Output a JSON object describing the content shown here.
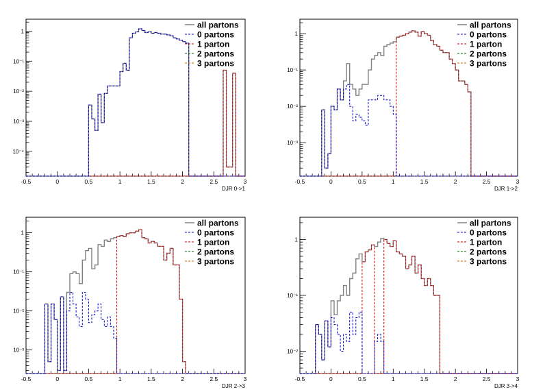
{
  "colors": {
    "all": "#808080",
    "p0": "#0000cc",
    "p1": "#cc0000",
    "p2": "#006600",
    "p3": "#cc6600",
    "axis": "#000000"
  },
  "legend_labels": [
    "all partons",
    "0 partons",
    "1 parton",
    "2 partons",
    "3 partons"
  ],
  "x_ticks": [
    "-0.5",
    "0",
    "0.5",
    "1",
    "1.5",
    "2",
    "2.5",
    "3"
  ],
  "chart_data": [
    {
      "type": "histogram",
      "xlabel": "DJR 0->1",
      "xlim": [
        -0.5,
        3
      ],
      "ylim": [
        1.5e-05,
        2.5
      ],
      "log_y": true,
      "y_ticks": [
        {
          "v": 1,
          "l": "1"
        },
        {
          "v": 0.1,
          "l": "10⁻¹"
        },
        {
          "v": 0.01,
          "l": "10⁻²"
        },
        {
          "v": 0.001,
          "l": "10⁻³"
        },
        {
          "v": 0.0001,
          "l": "10⁻⁴"
        }
      ],
      "legend_position": "top-right",
      "bin_width": 0.05,
      "bins": [
        {
          "x": 0.5,
          "all": 0.0035,
          "p0": 0.0035
        },
        {
          "x": 0.55,
          "all": 0.0012,
          "p0": 0.0012
        },
        {
          "x": 0.6,
          "all": 0.0005,
          "p0": 0.0005
        },
        {
          "x": 0.65,
          "all": 0.008,
          "p0": 0.008
        },
        {
          "x": 0.7,
          "all": 0.0009,
          "p0": 0.0009
        },
        {
          "x": 0.75,
          "all": 0.0085,
          "p0": 0.0085
        },
        {
          "x": 0.8,
          "all": 0.015,
          "p0": 0.015
        },
        {
          "x": 0.85,
          "all": 0.015,
          "p0": 0.015
        },
        {
          "x": 0.9,
          "all": 0.015,
          "p0": 0.015
        },
        {
          "x": 0.95,
          "all": 0.015,
          "p0": 0.015
        },
        {
          "x": 1.0,
          "all": 0.045,
          "p0": 0.045
        },
        {
          "x": 1.05,
          "all": 0.085,
          "p0": 0.085
        },
        {
          "x": 1.1,
          "all": 0.05,
          "p0": 0.05
        },
        {
          "x": 1.15,
          "all": 0.6,
          "p0": 0.6
        },
        {
          "x": 1.2,
          "all": 0.85,
          "p0": 0.85
        },
        {
          "x": 1.25,
          "all": 0.95,
          "p0": 0.95
        },
        {
          "x": 1.3,
          "all": 1.2,
          "p0": 1.2
        },
        {
          "x": 1.35,
          "all": 1.05,
          "p0": 1.05
        },
        {
          "x": 1.4,
          "all": 0.9,
          "p0": 0.9
        },
        {
          "x": 1.45,
          "all": 0.95,
          "p0": 0.95
        },
        {
          "x": 1.5,
          "all": 0.85,
          "p0": 0.85
        },
        {
          "x": 1.55,
          "all": 0.9,
          "p0": 0.9
        },
        {
          "x": 1.6,
          "all": 0.85,
          "p0": 0.85
        },
        {
          "x": 1.65,
          "all": 0.8,
          "p0": 0.8
        },
        {
          "x": 1.7,
          "all": 0.8,
          "p0": 0.8
        },
        {
          "x": 1.75,
          "all": 0.75,
          "p0": 0.75
        },
        {
          "x": 1.8,
          "all": 0.7,
          "p0": 0.7
        },
        {
          "x": 1.85,
          "all": 0.6,
          "p0": 0.6
        },
        {
          "x": 1.9,
          "all": 0.55,
          "p0": 0.55
        },
        {
          "x": 1.95,
          "all": 0.5,
          "p0": 0.5
        },
        {
          "x": 2.0,
          "all": 0.45,
          "p0": 0.45
        },
        {
          "x": 2.05,
          "all": 0.4,
          "p0": 0.4
        },
        {
          "x": 2.65,
          "all": 0.05
        },
        {
          "x": 2.7,
          "all": 3e-05
        },
        {
          "x": 2.75,
          "all": 3e-05
        },
        {
          "x": 2.8,
          "all": 0.04
        }
      ]
    },
    {
      "type": "histogram",
      "xlabel": "DJR 1->2",
      "xlim": [
        -0.5,
        3
      ],
      "ylim": [
        0.00012,
        2.5
      ],
      "log_y": true,
      "y_ticks": [
        {
          "v": 1,
          "l": "1"
        },
        {
          "v": 0.1,
          "l": "10⁻¹"
        },
        {
          "v": 0.01,
          "l": "10⁻²"
        },
        {
          "v": 0.001,
          "l": "10⁻³"
        }
      ],
      "legend_position": "top-right",
      "bin_width": 0.05,
      "bins": [
        {
          "x": -0.15,
          "all": 0.008,
          "p0": 0.008
        },
        {
          "x": -0.1,
          "all": 0.0002,
          "p0": 0.0002
        },
        {
          "x": -0.05,
          "all": 0.0005,
          "p0": 0.0005
        },
        {
          "x": 0.0,
          "all": 0.01,
          "p0": 0.01
        },
        {
          "x": 0.05,
          "all": 0.008,
          "p0": 0.008
        },
        {
          "x": 0.1,
          "all": 0.03,
          "p0": 0.03
        },
        {
          "x": 0.15,
          "all": 0.015,
          "p0": 0.015
        },
        {
          "x": 0.2,
          "all": 0.05,
          "p0": 0.03
        },
        {
          "x": 0.25,
          "all": 0.15,
          "p0": 0.04
        },
        {
          "x": 0.3,
          "all": 0.04,
          "p0": 0.01
        },
        {
          "x": 0.35,
          "all": 0.03,
          "p0": 0.004
        },
        {
          "x": 0.4,
          "all": 0.02,
          "p0": 0.006
        },
        {
          "x": 0.45,
          "all": 0.03,
          "p0": 0.005
        },
        {
          "x": 0.5,
          "all": 0.04,
          "p0": 0.004
        },
        {
          "x": 0.55,
          "all": 0.04,
          "p0": 0.003
        },
        {
          "x": 0.6,
          "all": 0.1,
          "p0": 0.015
        },
        {
          "x": 0.65,
          "all": 0.2,
          "p0": 0.015
        },
        {
          "x": 0.7,
          "all": 0.25,
          "p0": 0.015
        },
        {
          "x": 0.75,
          "all": 0.3,
          "p0": 0.02
        },
        {
          "x": 0.8,
          "all": 0.25,
          "p0": 0.02
        },
        {
          "x": 0.85,
          "all": 0.45,
          "p0": 0.015
        },
        {
          "x": 0.9,
          "all": 0.5,
          "p0": 0.015
        },
        {
          "x": 0.95,
          "all": 0.55,
          "p0": 0.01
        },
        {
          "x": 1.0,
          "all": 0.6,
          "p0": 0.006
        },
        {
          "x": 1.05,
          "all": 0.8
        },
        {
          "x": 1.1,
          "all": 0.85
        },
        {
          "x": 1.15,
          "all": 0.9
        },
        {
          "x": 1.2,
          "all": 1.0
        },
        {
          "x": 1.25,
          "all": 1.1
        },
        {
          "x": 1.3,
          "all": 1.2
        },
        {
          "x": 1.35,
          "all": 1.1
        },
        {
          "x": 1.4,
          "all": 0.85
        },
        {
          "x": 1.45,
          "all": 1.15
        },
        {
          "x": 1.5,
          "all": 1.0
        },
        {
          "x": 1.55,
          "all": 0.9
        },
        {
          "x": 1.6,
          "all": 0.65
        },
        {
          "x": 1.65,
          "all": 0.5
        },
        {
          "x": 1.7,
          "all": 0.45
        },
        {
          "x": 1.75,
          "all": 0.35
        },
        {
          "x": 1.8,
          "all": 0.3
        },
        {
          "x": 1.85,
          "all": 0.3
        },
        {
          "x": 1.9,
          "all": 0.2
        },
        {
          "x": 1.95,
          "all": 0.15
        },
        {
          "x": 2.0,
          "all": 0.1
        },
        {
          "x": 2.05,
          "all": 0.05
        },
        {
          "x": 2.1,
          "all": 0.05
        },
        {
          "x": 2.15,
          "all": 0.04
        },
        {
          "x": 2.2,
          "all": 0.025
        }
      ]
    },
    {
      "type": "histogram",
      "xlabel": "DJR 2->3",
      "xlim": [
        -0.5,
        3
      ],
      "ylim": [
        0.00025,
        2.5
      ],
      "log_y": true,
      "y_ticks": [
        {
          "v": 1,
          "l": "1"
        },
        {
          "v": 0.1,
          "l": "10⁻¹"
        },
        {
          "v": 0.01,
          "l": "10⁻²"
        },
        {
          "v": 0.001,
          "l": "10⁻³"
        }
      ],
      "legend_position": "top-right",
      "bin_width": 0.05,
      "bins": [
        {
          "x": -0.2,
          "all": 0.015,
          "p0": 0.015
        },
        {
          "x": -0.15,
          "all": 0.0005,
          "p0": 0.0005
        },
        {
          "x": -0.1,
          "all": 0.015,
          "p0": 0.015
        },
        {
          "x": -0.05,
          "all": 0.006,
          "p0": 0.006
        },
        {
          "x": 0.0,
          "all": 0.0003,
          "p0": 0.0003
        },
        {
          "x": 0.05,
          "all": 0.023,
          "p0": 0.023
        },
        {
          "x": 0.1,
          "all": 0.0003,
          "p0": 0.0003
        },
        {
          "x": 0.15,
          "all": 0.03,
          "p0": 0.01
        },
        {
          "x": 0.2,
          "all": 0.09,
          "p0": 0.03
        },
        {
          "x": 0.25,
          "all": 0.1,
          "p0": 0.015
        },
        {
          "x": 0.3,
          "all": 0.09,
          "p0": 0.007
        },
        {
          "x": 0.35,
          "all": 0.05,
          "p0": 0.004
        },
        {
          "x": 0.4,
          "all": 0.2,
          "p0": 0.03
        },
        {
          "x": 0.45,
          "all": 0.35,
          "p0": 0.02
        },
        {
          "x": 0.5,
          "all": 0.4,
          "p0": 0.005
        },
        {
          "x": 0.55,
          "all": 0.12,
          "p0": 0.008
        },
        {
          "x": 0.6,
          "all": 0.15,
          "p0": 0.01
        },
        {
          "x": 0.65,
          "all": 0.5,
          "p0": 0.015
        },
        {
          "x": 0.7,
          "all": 0.45,
          "p0": 0.006
        },
        {
          "x": 0.75,
          "all": 0.65,
          "p0": 0.004
        },
        {
          "x": 0.8,
          "all": 0.6,
          "p0": 0.007
        },
        {
          "x": 0.85,
          "all": 0.7,
          "p0": 0.004
        },
        {
          "x": 0.9,
          "all": 0.75,
          "p0": 0.002
        },
        {
          "x": 0.95,
          "all": 0.8
        },
        {
          "x": 1.0,
          "all": 0.85
        },
        {
          "x": 1.05,
          "all": 0.8
        },
        {
          "x": 1.1,
          "all": 0.95
        },
        {
          "x": 1.15,
          "all": 1.0
        },
        {
          "x": 1.2,
          "all": 1.0
        },
        {
          "x": 1.25,
          "all": 1.1
        },
        {
          "x": 1.3,
          "all": 1.2
        },
        {
          "x": 1.35,
          "all": 0.75
        },
        {
          "x": 1.4,
          "all": 0.7
        },
        {
          "x": 1.45,
          "all": 0.55
        },
        {
          "x": 1.5,
          "all": 0.6
        },
        {
          "x": 1.55,
          "all": 0.55
        },
        {
          "x": 1.6,
          "all": 0.45
        },
        {
          "x": 1.65,
          "all": 0.45
        },
        {
          "x": 1.7,
          "all": 0.2
        },
        {
          "x": 1.75,
          "all": 0.3
        },
        {
          "x": 1.8,
          "all": 0.4
        },
        {
          "x": 1.85,
          "all": 0.15
        },
        {
          "x": 1.9,
          "all": 0.15
        },
        {
          "x": 1.95,
          "all": 0.02
        },
        {
          "x": 2.0,
          "all": 0.0005
        }
      ]
    },
    {
      "type": "histogram",
      "xlabel": "DJR 3->4",
      "xlim": [
        -0.5,
        3
      ],
      "ylim": [
        0.004,
        2.5
      ],
      "log_y": true,
      "y_ticks": [
        {
          "v": 1,
          "l": "1"
        },
        {
          "v": 0.1,
          "l": "10⁻¹"
        },
        {
          "v": 0.01,
          "l": "10⁻²"
        }
      ],
      "legend_position": "top-right",
      "bin_width": 0.05,
      "bins": [
        {
          "x": -0.25,
          "all": 0.03,
          "p0": 0.03
        },
        {
          "x": -0.2,
          "all": 0.02,
          "p0": 0.02
        },
        {
          "x": -0.15,
          "all": 0.007,
          "p0": 0.007
        },
        {
          "x": -0.1,
          "all": 0.035,
          "p0": 0.035
        },
        {
          "x": -0.05,
          "all": 0.012,
          "p0": 0.012
        },
        {
          "x": 0.0,
          "all": 0.08,
          "p0": 0.04
        },
        {
          "x": 0.05,
          "all": 0.045,
          "p0": 0.03
        },
        {
          "x": 0.1,
          "all": 0.08,
          "p0": 0.02
        },
        {
          "x": 0.15,
          "all": 0.1,
          "p0": 0.01
        },
        {
          "x": 0.2,
          "all": 0.15,
          "p0": 0.02
        },
        {
          "x": 0.25,
          "all": 0.1,
          "p0": 0.015
        },
        {
          "x": 0.3,
          "all": 0.2,
          "p0": 0.05
        },
        {
          "x": 0.35,
          "all": 0.25,
          "p0": 0.02
        },
        {
          "x": 0.4,
          "all": 0.45,
          "p0": 0.04
        },
        {
          "x": 0.45,
          "all": 0.55,
          "p0": 0.05
        },
        {
          "x": 0.5,
          "all": 0.4
        },
        {
          "x": 0.55,
          "all": 0.6
        },
        {
          "x": 0.6,
          "all": 0.65
        },
        {
          "x": 0.65,
          "all": 0.8
        },
        {
          "x": 0.7,
          "all": 0.75,
          "p0": 0.015
        },
        {
          "x": 0.75,
          "all": 0.9,
          "p0": 0.02
        },
        {
          "x": 0.8,
          "all": 1.05,
          "p0": 0.015
        },
        {
          "x": 0.85,
          "all": 1.0
        },
        {
          "x": 0.9,
          "all": 0.85
        },
        {
          "x": 0.95,
          "all": 0.75
        },
        {
          "x": 1.0,
          "all": 0.95
        },
        {
          "x": 1.05,
          "all": 0.6
        },
        {
          "x": 1.1,
          "all": 0.55
        },
        {
          "x": 1.15,
          "all": 0.5
        },
        {
          "x": 1.2,
          "all": 0.3
        },
        {
          "x": 1.25,
          "all": 0.35
        },
        {
          "x": 1.3,
          "all": 0.5
        },
        {
          "x": 1.35,
          "all": 0.25
        },
        {
          "x": 1.4,
          "all": 0.35
        },
        {
          "x": 1.45,
          "all": 0.2
        },
        {
          "x": 1.5,
          "all": 0.15
        },
        {
          "x": 1.55,
          "all": 0.2
        },
        {
          "x": 1.6,
          "all": 0.15
        },
        {
          "x": 1.65,
          "all": 0.1
        },
        {
          "x": 1.7,
          "all": 0.1
        }
      ]
    }
  ]
}
